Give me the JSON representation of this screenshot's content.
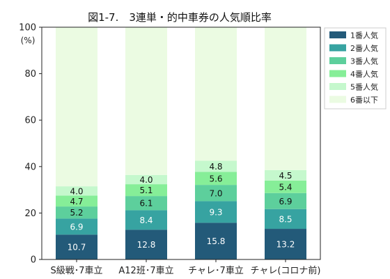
{
  "chart_data": {
    "type": "bar",
    "stacked": true,
    "title": "図1-7.　3連単・的中車券の人気順比率",
    "y_unit": "(%)",
    "ylim": [
      0,
      100
    ],
    "yticks": [
      0,
      20,
      40,
      60,
      80,
      100
    ],
    "categories": [
      "S級戦･7車立",
      "A12班･7車立",
      "チャレ･7車立",
      "チャレ(コロナ前)"
    ],
    "series": [
      {
        "name": "1番人気",
        "color": "#235a79",
        "label_color": "#ffffff",
        "values": [
          10.7,
          12.8,
          15.8,
          13.2
        ]
      },
      {
        "name": "2番人気",
        "color": "#37a3a1",
        "label_color": "#ffffff",
        "values": [
          6.9,
          8.4,
          9.3,
          8.5
        ]
      },
      {
        "name": "3番人気",
        "color": "#5dcf9c",
        "label_color": "#111111",
        "values": [
          5.2,
          6.1,
          7.0,
          6.9
        ]
      },
      {
        "name": "4番人気",
        "color": "#86ee98",
        "label_color": "#111111",
        "values": [
          4.7,
          5.1,
          5.6,
          5.4
        ]
      },
      {
        "name": "5番人気",
        "color": "#c5f8cd",
        "label_color": "#111111",
        "values": [
          4.0,
          4.0,
          4.8,
          4.5
        ]
      },
      {
        "name": "6番以下",
        "color": "#ebfbe2",
        "label_color": "#111111",
        "values": [
          68.5,
          63.6,
          57.5,
          61.5
        ],
        "show_labels": false
      }
    ],
    "legend_position": "top-right-outside",
    "grid": false
  }
}
